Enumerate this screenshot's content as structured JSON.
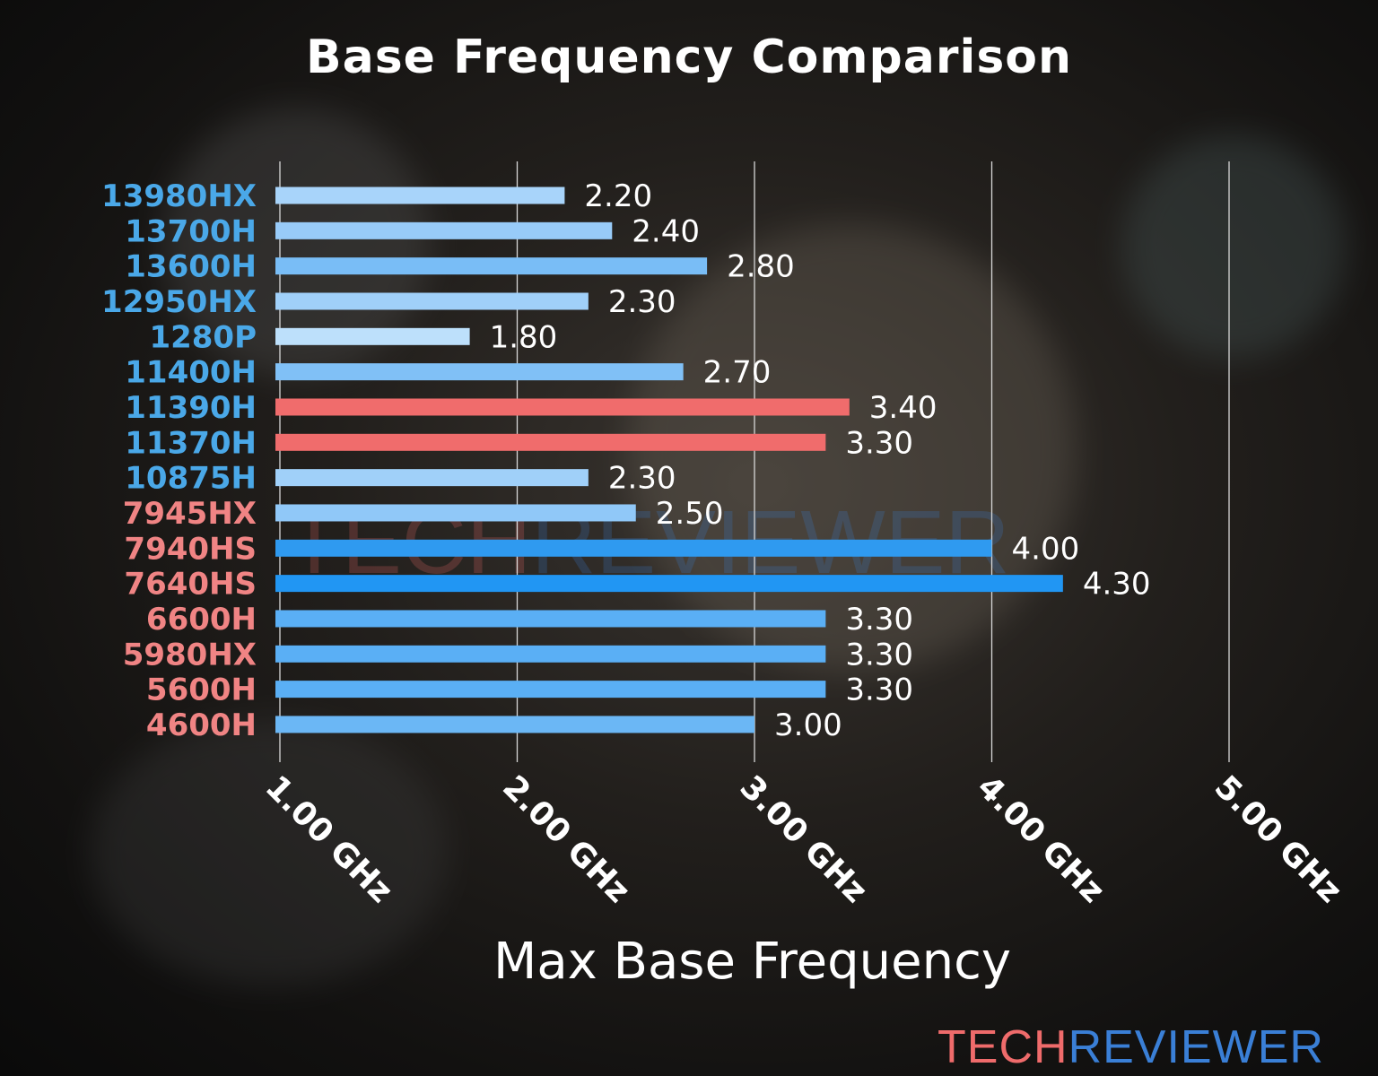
{
  "chart_data": {
    "type": "bar",
    "orientation": "horizontal",
    "title": "Base Frequency Comparison",
    "xlabel": "Max Base Frequency",
    "ylabel": "",
    "xlim": [
      1.0,
      5.0
    ],
    "xticks": [
      1.0,
      2.0,
      3.0,
      4.0,
      5.0
    ],
    "xtick_labels": [
      "1.00 GHz",
      "2.00 GHz",
      "3.00 GHz",
      "4.00 GHz",
      "5.00 GHz"
    ],
    "grid": "vertical",
    "categories": [
      "13980HX",
      "13700H",
      "13600H",
      "12950HX",
      "1280P",
      "11400H",
      "11390H",
      "11370H",
      "10875H",
      "7945HX",
      "7940HS",
      "7640HS",
      "6600H",
      "5980HX",
      "5600H",
      "4600H"
    ],
    "values": [
      2.2,
      2.4,
      2.8,
      2.3,
      1.8,
      2.7,
      3.4,
      3.3,
      2.3,
      2.5,
      4.0,
      4.3,
      3.3,
      3.3,
      3.3,
      3.0
    ],
    "data_labels": [
      "2.20",
      "2.40",
      "2.80",
      "2.30",
      "1.80",
      "2.70",
      "3.40",
      "3.30",
      "2.30",
      "2.50",
      "4.00",
      "4.30",
      "3.30",
      "3.30",
      "3.30",
      "3.00"
    ],
    "category_label_colors": [
      "#4aa8e8",
      "#4aa8e8",
      "#4aa8e8",
      "#4aa8e8",
      "#4aa8e8",
      "#4aa8e8",
      "#4aa8e8",
      "#4aa8e8",
      "#4aa8e8",
      "#f08484",
      "#f08484",
      "#f08484",
      "#f08484",
      "#f08484",
      "#f08484",
      "#f08484"
    ],
    "bar_colors": [
      "#a8d4fa",
      "#98cbf8",
      "#79bdf6",
      "#a0d0f9",
      "#bde0fb",
      "#80c0f6",
      "#f06c6c",
      "#f06c6c",
      "#a0d0f9",
      "#90c8f8",
      "#2f9af0",
      "#2196f3",
      "#5aaff5",
      "#5aaff5",
      "#5aaff5",
      "#6bb7f5"
    ]
  },
  "logo": {
    "part1": "TECH",
    "part2": "REVIEWER"
  }
}
